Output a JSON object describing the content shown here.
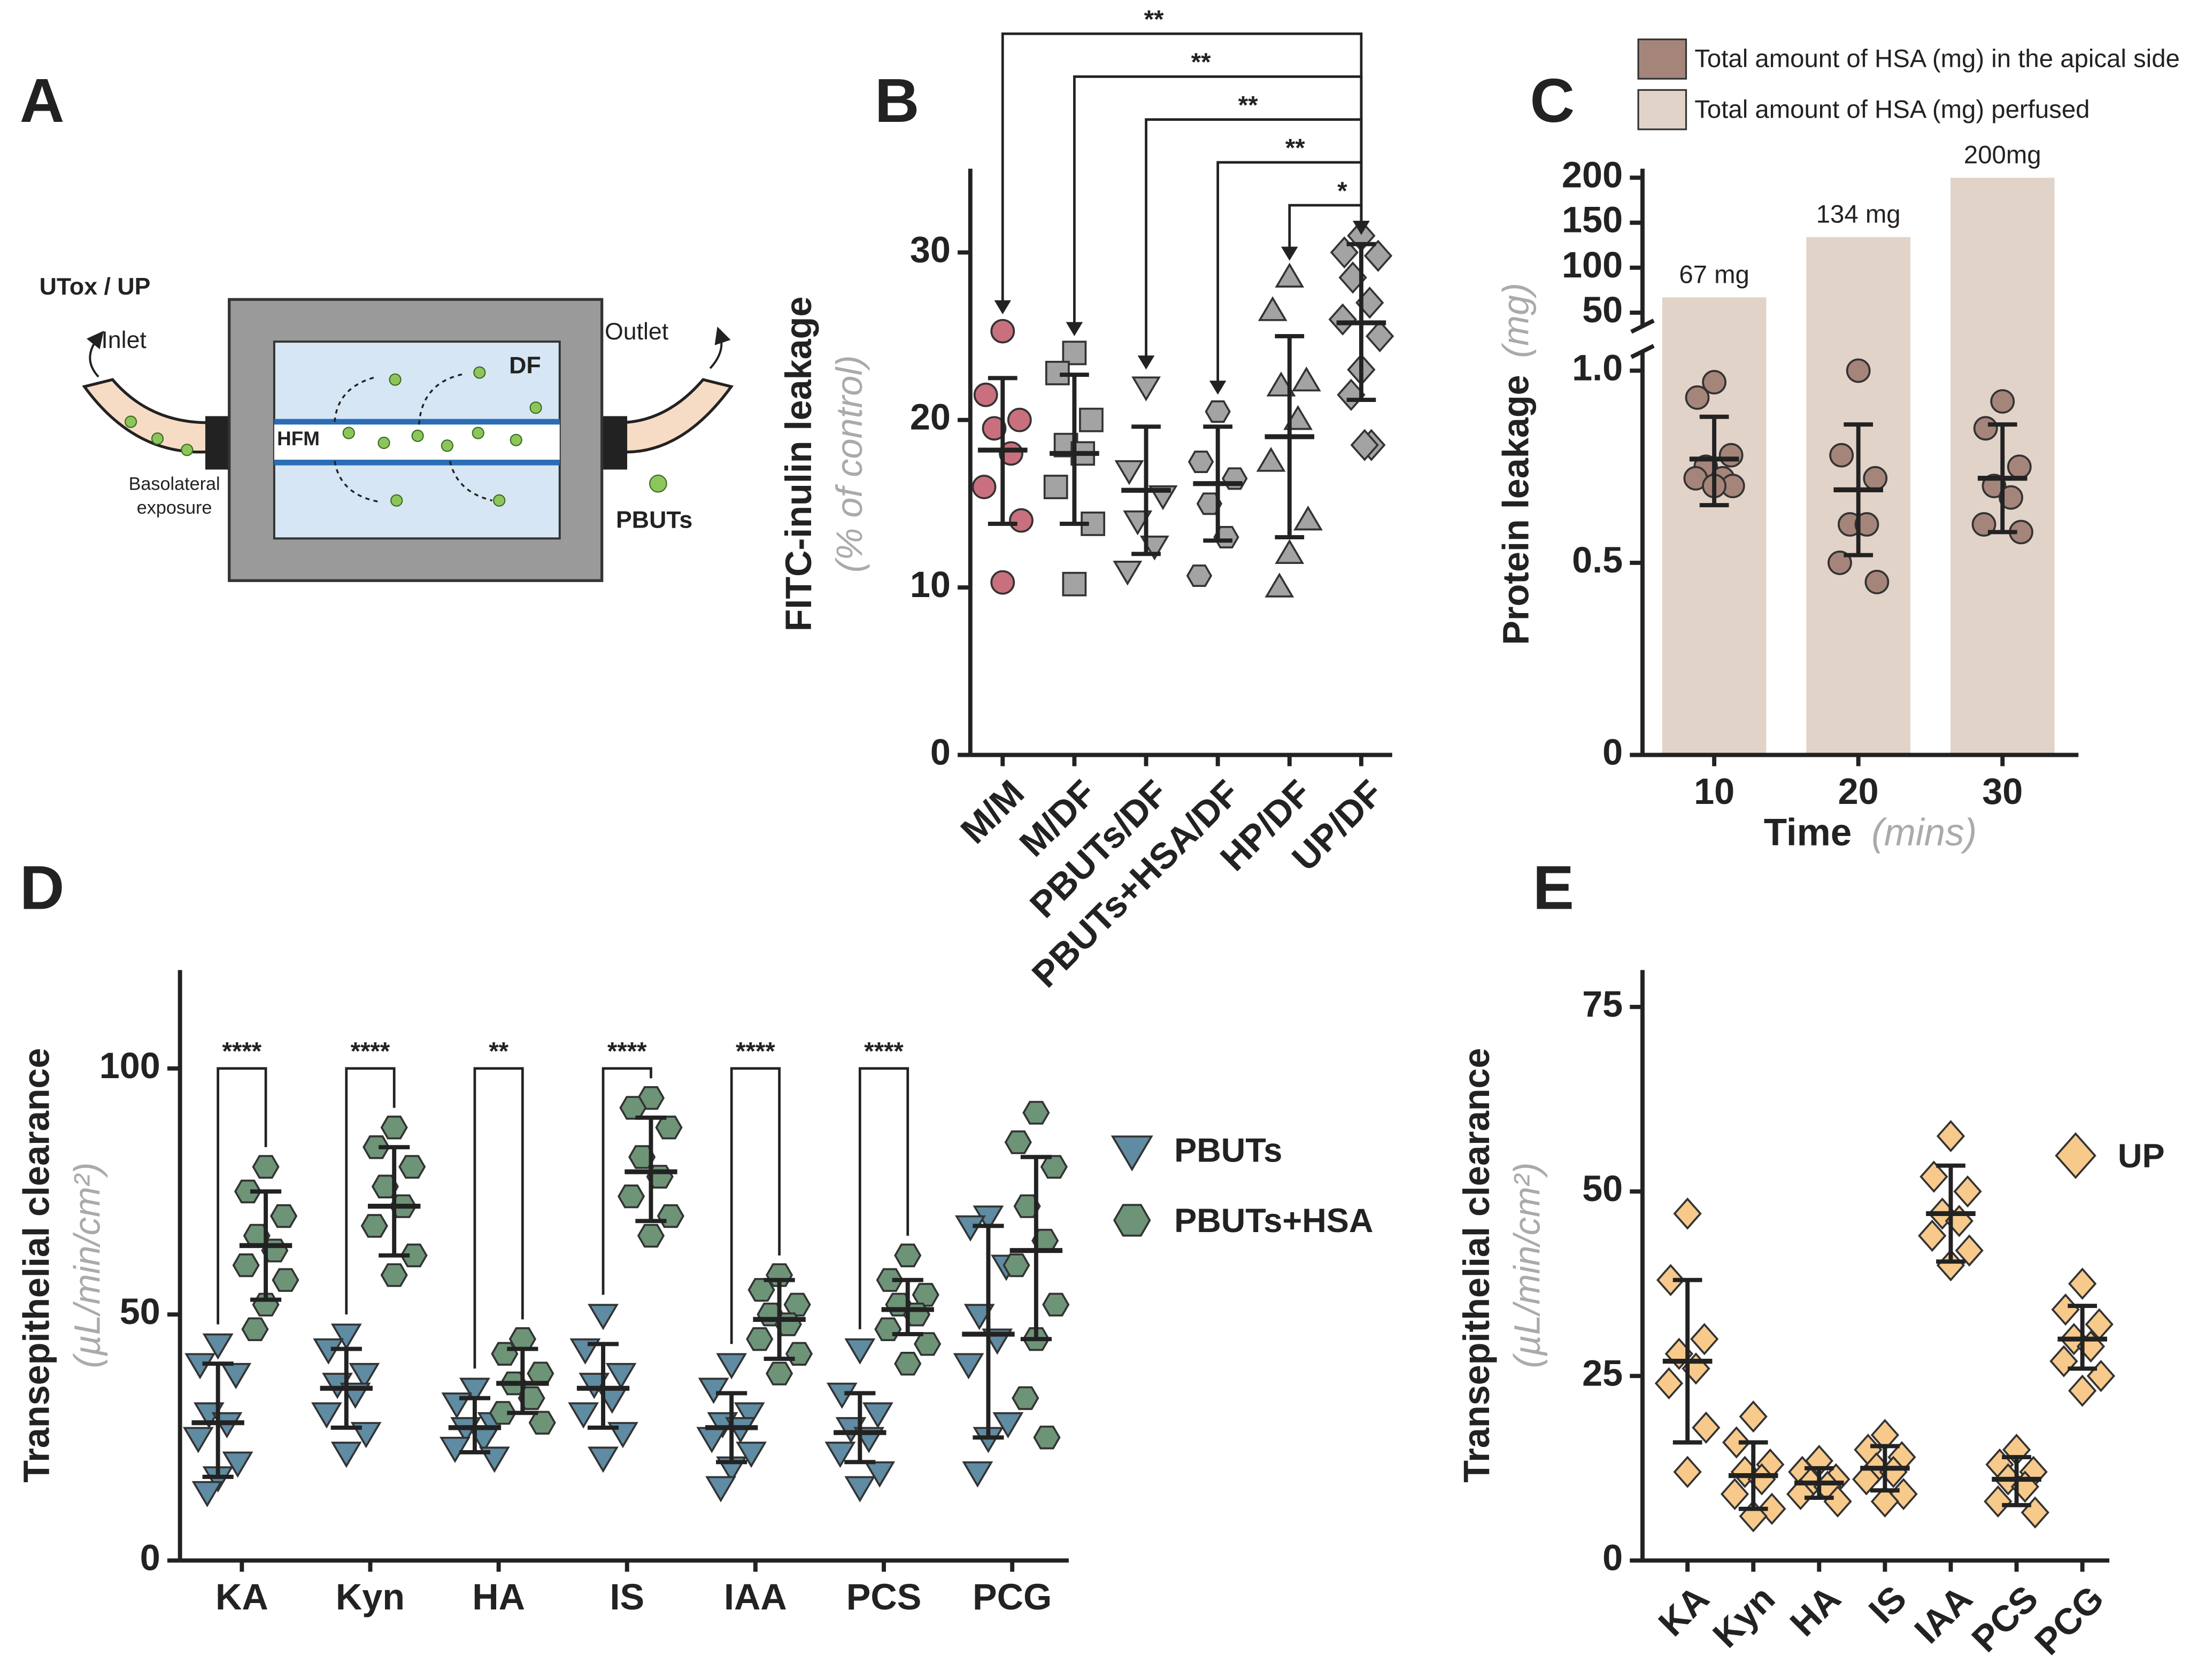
{
  "diagram": {
    "label": "A",
    "utox": "UTox / UP",
    "inlet": "Inlet",
    "df": "DF",
    "hfm": "HFM",
    "outlet": "Outlet",
    "basolateral": "Basolateral",
    "exposure": "exposure",
    "pbuts": "PBUTs"
  },
  "chart_data": [
    {
      "type": "dot",
      "label": "B",
      "ylabel": "FITC-inulin leakage",
      "ylabel_unit": "(% of control)",
      "categories": [
        "M/M",
        "M/DF",
        "PBUTs/DF",
        "PBUTs+HSA/DF",
        "HP/DF",
        "UP/DF"
      ],
      "ylim": [
        0,
        35
      ],
      "yticks": [
        0,
        10,
        20,
        30
      ],
      "series": [
        {
          "colors": [
            "#c9707e",
            "#a3a3a3",
            "#a3a3a3",
            "#a3a3a3",
            "#a3a3a3",
            "#a3a3a3"
          ],
          "markers": [
            "circle",
            "square",
            "triangle-down",
            "hexagon",
            "triangle-up",
            "diamond"
          ],
          "points": [
            [
              25.3,
              21.5,
              20,
              19.5,
              18,
              16,
              14,
              10.3
            ],
            [
              24,
              22.8,
              20,
              18.5,
              18,
              16,
              13.8,
              10.2
            ],
            [
              22,
              17,
              15.5,
              14,
              12.5,
              11
            ],
            [
              20.5,
              17.5,
              16.5,
              15,
              13,
              10.7
            ],
            [
              28.5,
              26.5,
              22.3,
              22,
              20,
              17.5,
              14,
              12,
              10
            ],
            [
              31,
              30,
              29.8,
              28.5,
              27,
              26,
              25,
              23,
              21.5,
              18.5,
              18.5
            ]
          ],
          "mean": [
            18.2,
            18,
            15.8,
            16.2,
            19,
            25.8
          ],
          "error_low": [
            13.8,
            13.8,
            12,
            12.8,
            13,
            21.2
          ],
          "error_high": [
            22.5,
            22.7,
            19.6,
            19.6,
            25,
            30.5
          ]
        }
      ],
      "comparisons": [
        {
          "from": 0,
          "to": 5,
          "label": "**"
        },
        {
          "from": 1,
          "to": 5,
          "label": "**"
        },
        {
          "from": 2,
          "to": 5,
          "label": "**"
        },
        {
          "from": 3,
          "to": 5,
          "label": "**"
        },
        {
          "from": 4,
          "to": 5,
          "label": "*"
        }
      ]
    },
    {
      "type": "bar_dot",
      "label": "C",
      "ylabel": "Protein leakage",
      "ylabel_unit": "(mg)",
      "xlabel": "Time",
      "xlabel_unit": "(mins)",
      "categories": [
        "10",
        "20",
        "30"
      ],
      "ylim": [
        0,
        1.05
      ],
      "yticks": [
        0,
        0.5,
        {
          "value": 1,
          "label": "1.0"
        }
      ],
      "y2lim": [
        35,
        210
      ],
      "y2ticks": [
        50,
        100,
        150,
        200
      ],
      "bars": {
        "name": "Total amount of HSA (mg) perfused",
        "color": "#e2d3c8",
        "axis": "y2",
        "values": [
          67,
          134,
          200
        ],
        "value_labels": [
          "67 mg",
          "134 mg",
          "200mg"
        ]
      },
      "series": [
        {
          "name": "Total amount of HSA (mg) in the apical side",
          "color": "#a5857a",
          "marker": "circle",
          "points": [
            [
              0.97,
              0.93,
              0.78,
              0.75,
              0.72,
              0.72,
              0.7,
              0.7
            ],
            [
              1.0,
              0.78,
              0.72,
              0.6,
              0.6,
              0.5,
              0.45
            ],
            [
              0.92,
              0.85,
              0.75,
              0.7,
              0.67,
              0.6,
              0.58
            ]
          ],
          "mean": [
            0.77,
            0.69,
            0.72
          ],
          "error_low": [
            0.65,
            0.52,
            0.58
          ],
          "error_high": [
            0.88,
            0.86,
            0.86
          ]
        }
      ]
    },
    {
      "type": "dot",
      "label": "D",
      "ylabel": "Transepithelial clearance",
      "ylabel_unit": "(µL/min/cm²)",
      "categories": [
        "KA",
        "Kyn",
        "HA",
        "IS",
        "IAA",
        "PCS",
        "PCG"
      ],
      "ylim": [
        0,
        120
      ],
      "yticks": [
        0,
        50,
        100
      ],
      "series": [
        {
          "name": "PBUTs",
          "color": "#5f8ba3",
          "marker": "triangle-down",
          "points": [
            [
              44,
              40,
              38,
              30,
              28,
              25,
              20,
              17,
              14
            ],
            [
              46,
              43,
              38,
              36,
              34,
              30,
              26,
              22
            ],
            [
              35,
              32,
              28,
              27,
              25,
              23,
              21
            ],
            [
              50,
              43,
              38,
              36,
              33,
              30,
              26,
              21
            ],
            [
              40,
              35,
              30,
              28,
              27,
              25,
              22,
              19,
              15
            ],
            [
              43,
              34,
              30,
              27,
              25,
              22,
              18,
              15
            ],
            [
              70,
              68,
              60,
              50,
              45,
              40,
              28,
              25,
              18
            ]
          ],
          "mean": [
            28,
            35,
            27,
            35,
            27,
            26,
            46
          ],
          "error_low": [
            17,
            27,
            22,
            27,
            20,
            20,
            25
          ],
          "error_high": [
            40,
            43,
            33,
            44,
            34,
            34,
            68
          ]
        },
        {
          "name": "PBUTs+HSA",
          "color": "#6e9478",
          "marker": "hexagon",
          "points": [
            [
              80,
              75,
              70,
              66,
              63,
              60,
              57,
              52,
              47
            ],
            [
              88,
              84,
              80,
              76,
              72,
              68,
              62,
              58
            ],
            [
              45,
              42,
              38,
              36,
              33,
              30,
              28
            ],
            [
              94,
              92,
              88,
              82,
              78,
              74,
              70,
              66
            ],
            [
              58,
              55,
              52,
              50,
              48,
              45,
              42,
              38
            ],
            [
              62,
              57,
              54,
              52,
              50,
              47,
              44,
              40
            ],
            [
              91,
              85,
              80,
              72,
              65,
              60,
              52,
              45,
              33,
              25
            ]
          ],
          "mean": [
            64,
            72,
            36,
            79,
            49,
            51,
            63
          ],
          "error_low": [
            53,
            62,
            30,
            69,
            41,
            46,
            45
          ],
          "error_high": [
            75,
            84,
            43,
            90,
            57,
            57,
            82
          ]
        }
      ],
      "significance": [
        "****",
        "****",
        "**",
        "****",
        "****",
        "****",
        null
      ]
    },
    {
      "type": "dot",
      "label": "E",
      "ylabel": "Transepithelial clearance",
      "ylabel_unit": "(µL/min/cm²)",
      "categories": [
        "KA",
        "Kyn",
        "HA",
        "IS",
        "IAA",
        "PCS",
        "PCG"
      ],
      "ylim": [
        0,
        80
      ],
      "yticks": [
        0,
        25,
        50,
        75
      ],
      "series": [
        {
          "name": "UP",
          "color": "#f7c98b",
          "marker": "diamond",
          "points": [
            [
              47,
              38,
              30,
              28,
              26,
              24,
              18,
              12
            ],
            [
              19.5,
              16,
              13,
              12,
              11,
              9,
              7,
              6
            ],
            [
              13.5,
              12,
              11,
              10.5,
              10,
              9,
              8
            ],
            [
              17,
              15,
              14,
              12.5,
              12,
              11,
              9,
              8
            ],
            [
              57.5,
              52,
              50,
              47,
              46,
              44,
              42,
              40
            ],
            [
              15,
              13,
              12,
              11,
              10,
              8,
              6.5
            ],
            [
              37.5,
              34,
              32,
              30,
              29,
              27,
              25,
              23
            ]
          ],
          "mean": [
            27,
            11.5,
            10.5,
            12.5,
            47,
            11,
            30
          ],
          "error_low": [
            16,
            7,
            8.5,
            9.5,
            40.5,
            7.5,
            26
          ],
          "error_high": [
            38,
            16,
            12.5,
            15.5,
            53.5,
            14,
            34.5
          ]
        }
      ]
    }
  ]
}
